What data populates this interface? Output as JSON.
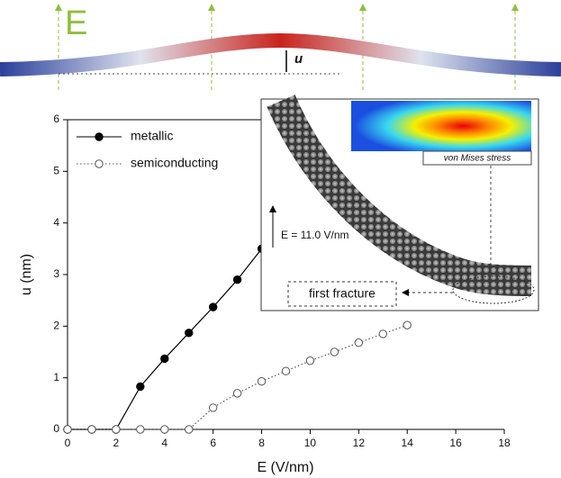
{
  "illustration": {
    "field_label": "E",
    "displacement_label": "u"
  },
  "inset": {
    "stress_label": "von Mises stress",
    "field_note": "E = 11.0 V/nm",
    "fracture_label": "first fracture"
  },
  "chart_data": {
    "type": "line",
    "xlabel": "E (V/nm)",
    "ylabel": "u (nm)",
    "xlim": [
      0,
      18
    ],
    "xticks": [
      0,
      2,
      4,
      6,
      8,
      10,
      12,
      14,
      16,
      18
    ],
    "ylim": [
      0,
      6
    ],
    "yticks": [
      0,
      1,
      2,
      3,
      4,
      5,
      6
    ],
    "legend": "top-left",
    "series": [
      {
        "name": "metallic",
        "color": "#000000",
        "marker": "filled",
        "dash": "solid",
        "x": [
          0,
          1,
          2,
          3,
          4,
          5,
          6,
          7,
          8
        ],
        "values": [
          0,
          0,
          0,
          0.83,
          1.37,
          1.87,
          2.37,
          2.9,
          3.5
        ]
      },
      {
        "name": "semiconducting",
        "color": "#555555",
        "marker": "open",
        "dash": "dotted",
        "x": [
          0,
          1,
          2,
          3,
          4,
          5,
          6,
          7,
          8,
          9,
          10,
          11,
          12,
          13,
          14
        ],
        "values": [
          0,
          0,
          0,
          0,
          0,
          0,
          0.42,
          0.7,
          0.93,
          1.13,
          1.33,
          1.5,
          1.68,
          1.85,
          2.02
        ]
      }
    ]
  }
}
